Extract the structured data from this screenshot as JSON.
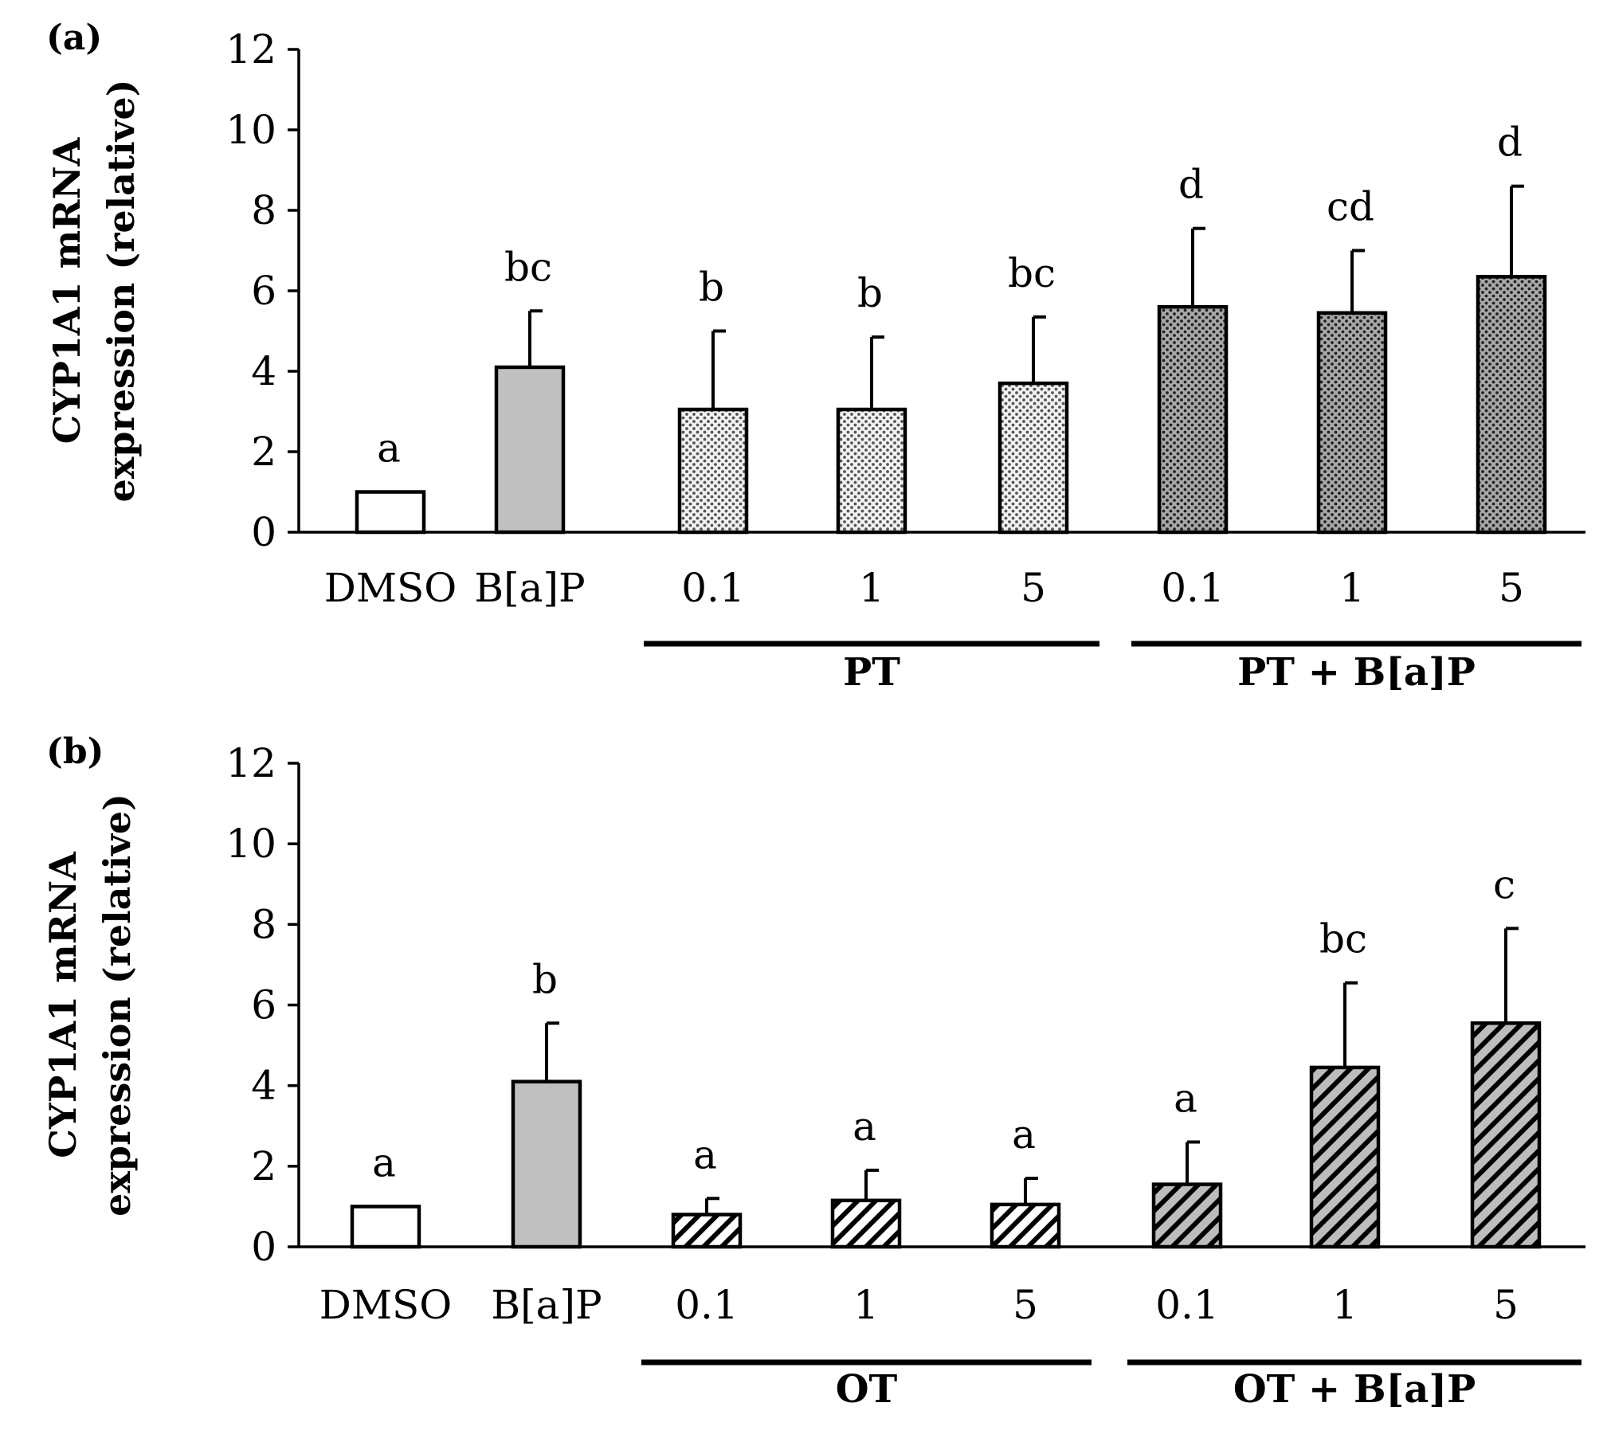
{
  "chart_data": [
    {
      "panel": "(a)",
      "type": "bar",
      "ylabel_line1": "CYP1A1 mRNA",
      "ylabel_line2": "expression (relative)",
      "ylim": [
        0,
        12
      ],
      "yticks": [
        "0",
        "2",
        "4",
        "6",
        "8",
        "10",
        "12"
      ],
      "categories": [
        "DMSO",
        "B[a]P",
        "0.1",
        "1",
        "5",
        "0.1",
        "1",
        "5"
      ],
      "values": [
        1.0,
        4.1,
        3.05,
        3.05,
        3.7,
        5.6,
        5.45,
        6.35
      ],
      "errors": [
        0.0,
        1.4,
        1.95,
        1.8,
        1.65,
        1.95,
        1.55,
        2.25
      ],
      "significance": [
        "a",
        "bc",
        "b",
        "b",
        "bc",
        "d",
        "cd",
        "d"
      ],
      "fills": [
        "white",
        "gray",
        "dots-light",
        "dots-light",
        "dots-light",
        "dots-dark",
        "dots-dark",
        "dots-dark"
      ],
      "groups": [
        {
          "label": "PT",
          "from": 2,
          "to": 4
        },
        {
          "label": "PT + B[a]P",
          "from": 5,
          "to": 7
        }
      ]
    },
    {
      "panel": "(b)",
      "type": "bar",
      "ylabel_line1": "CYP1A1 mRNA",
      "ylabel_line2": "expression (relative)",
      "ylim": [
        0,
        12
      ],
      "yticks": [
        "0",
        "2",
        "4",
        "6",
        "8",
        "10",
        "12"
      ],
      "categories": [
        "DMSO",
        "B[a]P",
        "0.1",
        "1",
        "5",
        "0.1",
        "1",
        "5"
      ],
      "values": [
        1.0,
        4.1,
        0.8,
        1.15,
        1.05,
        1.55,
        4.45,
        5.55
      ],
      "errors": [
        0.0,
        1.45,
        0.4,
        0.75,
        0.65,
        1.05,
        2.1,
        2.35
      ],
      "significance": [
        "a",
        "b",
        "a",
        "a",
        "a",
        "a",
        "bc",
        "c"
      ],
      "fills": [
        "white",
        "gray",
        "hatch-light",
        "hatch-light",
        "hatch-light",
        "hatch-dark",
        "hatch-dark",
        "hatch-dark"
      ],
      "groups": [
        {
          "label": "OT",
          "from": 2,
          "to": 4
        },
        {
          "label": "OT + B[a]P",
          "from": 5,
          "to": 7
        }
      ]
    }
  ],
  "colors": {
    "white": "#ffffff",
    "gray": "#c0c0c0",
    "dots_light_bg": "#f2f2f2",
    "dots_dark_bg": "#a8a8a8",
    "hatch_light_bg": "#ffffff",
    "hatch_dark_bg": "#bdbdbd",
    "ink": "#000000"
  }
}
